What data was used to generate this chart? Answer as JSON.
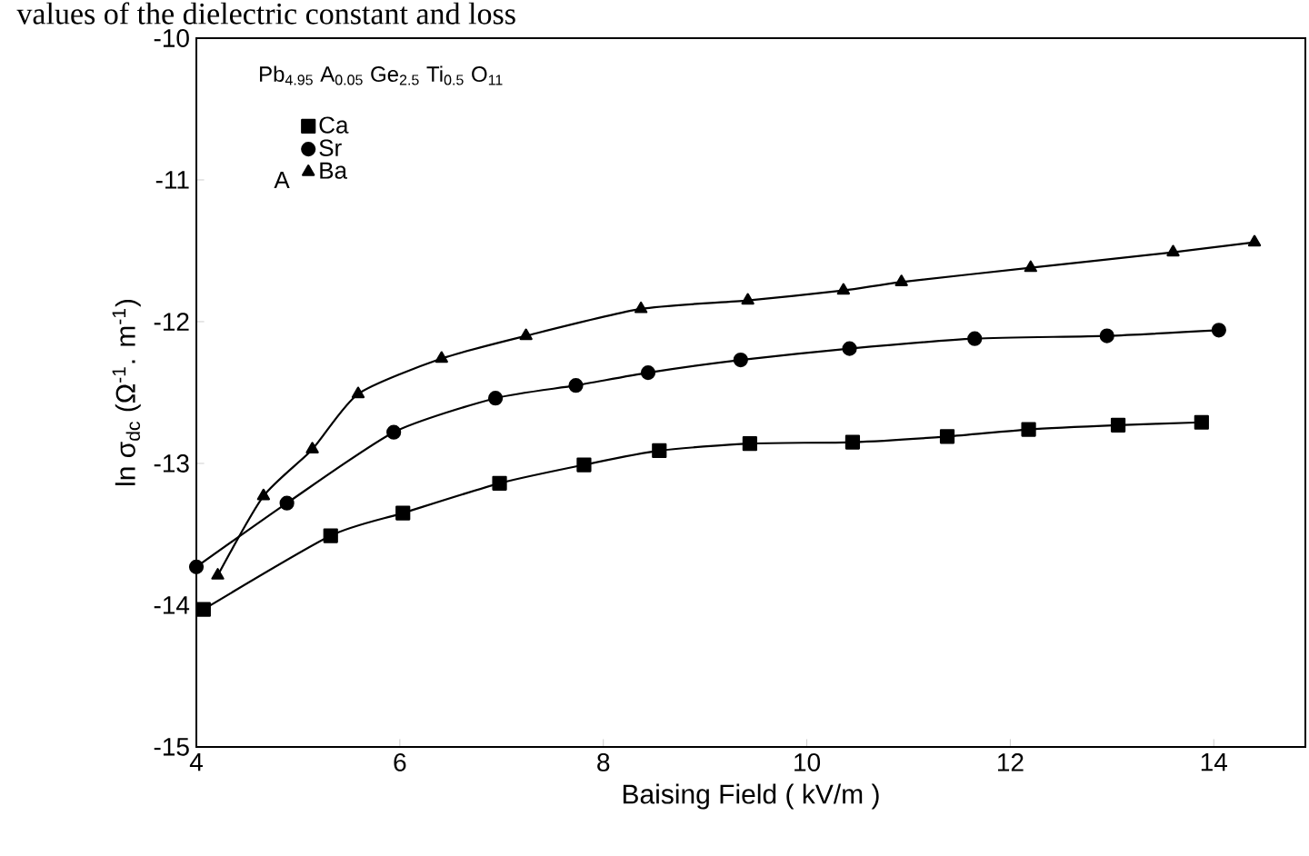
{
  "chart_data": {
    "type": "line",
    "annotations": [
      "values of the dielectric constant and loss",
      "Pb$_{4.95}$ A$_{0.05}$ Ge$_{2.5}$ Ti$_{0.5}$ O$_{11}$"
    ],
    "xlabel": "Baising   Field ( kV/m )",
    "ylabel": "ln σ$_{dc}$ (Ω$^{-1}$. m$^{-1}$)",
    "legend_title": "A",
    "legend": "top left",
    "line_style": "solid",
    "series": [
      {
        "name": "Ca",
        "color": "#000000",
        "marker": "square",
        "x": [
          4.07,
          5.32,
          6.03,
          6.98,
          7.81,
          8.55,
          9.44,
          10.45,
          11.38,
          12.18,
          13.06,
          13.88
        ],
        "values": [
          -14.03,
          -13.51,
          -13.35,
          -13.14,
          -13.01,
          -12.91,
          -12.86,
          -12.85,
          -12.81,
          -12.76,
          -12.73,
          -12.71
        ]
      },
      {
        "name": "Sr",
        "color": "#000000",
        "marker": "circle",
        "x": [
          4.0,
          4.89,
          5.94,
          6.94,
          7.73,
          8.44,
          9.35,
          10.42,
          11.65,
          12.95,
          14.05
        ],
        "values": [
          -13.73,
          -13.28,
          -12.78,
          -12.54,
          -12.45,
          -12.36,
          -12.27,
          -12.19,
          -12.12,
          -12.1,
          -12.06
        ]
      },
      {
        "name": "Ba",
        "color": "#000000",
        "marker": "triangle",
        "x": [
          4.21,
          4.66,
          5.14,
          5.59,
          6.41,
          7.24,
          8.37,
          9.42,
          10.36,
          10.93,
          12.2,
          13.6,
          14.4
        ],
        "values": [
          -13.79,
          -13.23,
          -12.9,
          -12.51,
          -12.26,
          -12.1,
          -11.91,
          -11.85,
          -11.78,
          -11.72,
          -11.62,
          -11.51,
          -11.44
        ]
      }
    ],
    "xlim": [
      4,
      14.9
    ],
    "xticks": [
      4,
      6,
      8,
      10,
      12,
      14
    ],
    "ylim": [
      -15,
      -10
    ],
    "yticks": [
      -15,
      -14,
      -13,
      -12,
      -11,
      -10
    ]
  }
}
